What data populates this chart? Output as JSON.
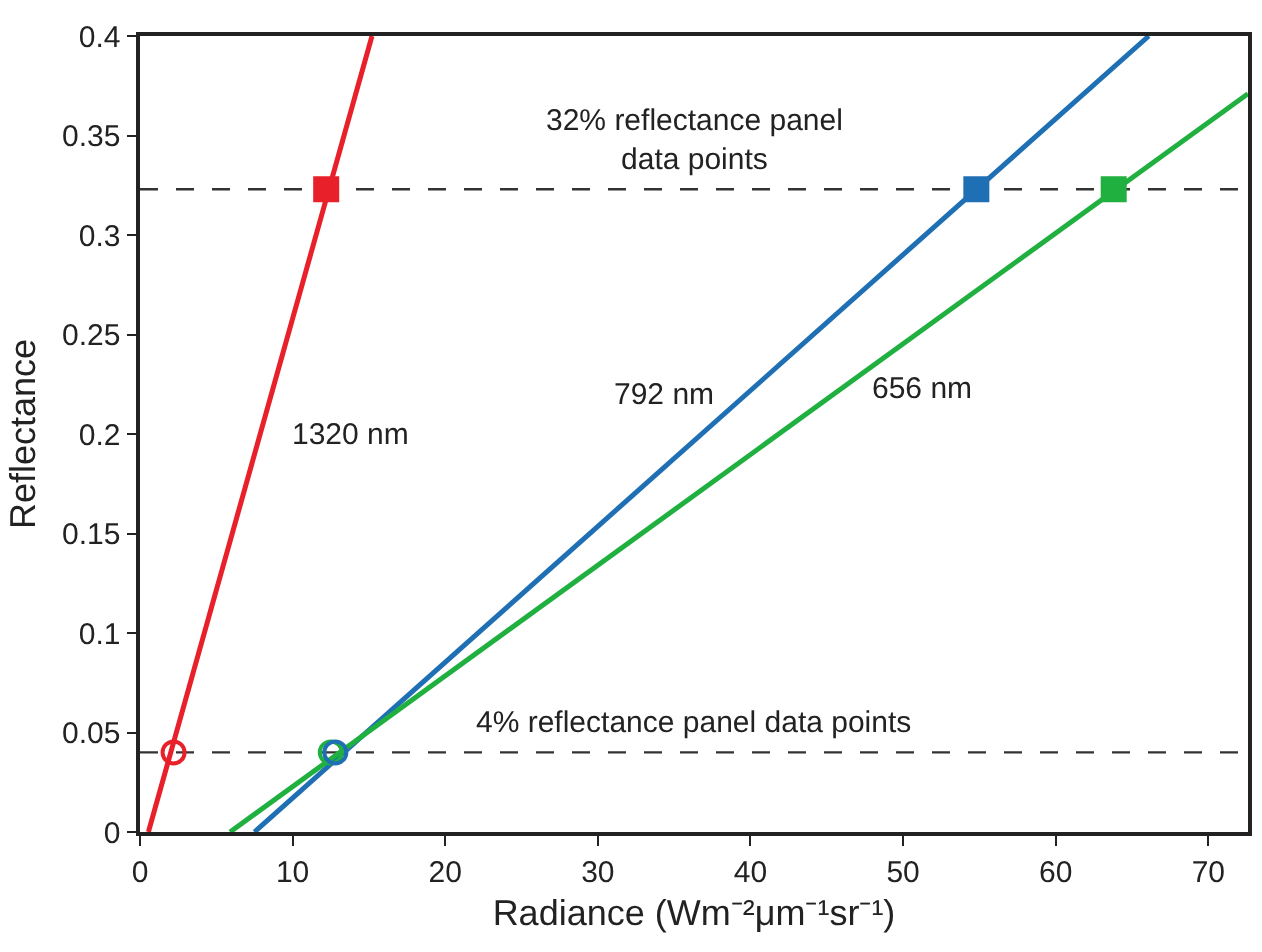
{
  "chart_data": {
    "type": "line",
    "xlabel": "Radiance (Wm⁻²μm⁻¹sr⁻¹)",
    "ylabel": "Reflectance",
    "xlim": [
      0,
      72.6
    ],
    "xticks": [
      0,
      10,
      20,
      30,
      40,
      50,
      60,
      70
    ],
    "ylim": [
      0,
      0.4
    ],
    "yticks": [
      0,
      0.05,
      0.1,
      0.15,
      0.2,
      0.25,
      0.3,
      0.35,
      0.4
    ],
    "grid": false,
    "legend": false,
    "line_style": "solid",
    "series": [
      {
        "name": "1320 nm",
        "color": "#e8202a",
        "x": [
          0.55,
          15.2
        ],
        "values": [
          0,
          0.4
        ],
        "marker": "none"
      },
      {
        "name": "792 nm",
        "color": "#1f6fb4",
        "x": [
          7.5,
          66.1
        ],
        "values": [
          0,
          0.4
        ],
        "marker": "none"
      },
      {
        "name": "656 nm",
        "color": "#20b040",
        "x": [
          5.9,
          72.6
        ],
        "values": [
          0,
          0.371
        ],
        "marker": "none"
      },
      {
        "type": "scatter",
        "color": "#e8202a",
        "x": [
          12.2
        ],
        "values": [
          0.323
        ],
        "marker": "square"
      },
      {
        "type": "scatter",
        "color": "#1f6fb4",
        "x": [
          54.8
        ],
        "values": [
          0.323
        ],
        "marker": "square"
      },
      {
        "type": "scatter",
        "color": "#20b040",
        "x": [
          63.8
        ],
        "values": [
          0.323
        ],
        "marker": "square"
      },
      {
        "type": "scatter",
        "color": "#e8202a",
        "x": [
          2.2
        ],
        "values": [
          0.04
        ],
        "marker": "circle"
      },
      {
        "type": "scatter",
        "color": "#20b040",
        "x": [
          12.5
        ],
        "values": [
          0.04
        ],
        "marker": "circle"
      },
      {
        "type": "scatter",
        "color": "#1f6fb4",
        "x": [
          12.8
        ],
        "values": [
          0.04
        ],
        "marker": "circle"
      }
    ],
    "ref_lines": [
      {
        "axis": "y",
        "value": 0.04,
        "line_style": "dashed",
        "color": "#333333",
        "label": "4% reflectance panel data points"
      },
      {
        "axis": "y",
        "value": 0.323,
        "line_style": "dashed",
        "color": "#333333",
        "label": "32% reflectance panel\ndata points"
      }
    ]
  }
}
